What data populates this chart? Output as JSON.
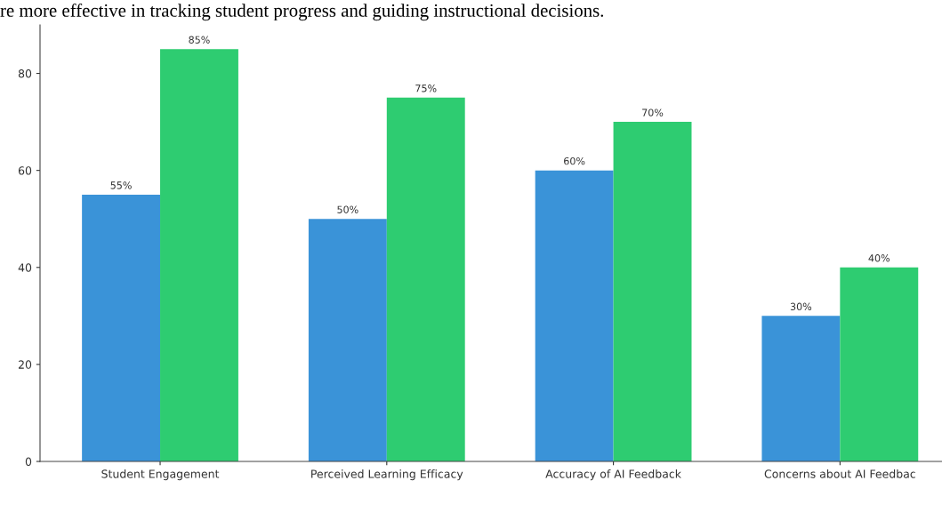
{
  "chart_data": {
    "type": "bar",
    "annotations": [
      "re more effective in tracking student progress and guiding instructional decisions."
    ],
    "categories": [
      "Student Engagement",
      "Perceived Learning Efficacy",
      "Accuracy of AI Feedback",
      "Concerns about AI Feedbac"
    ],
    "series": [
      {
        "color": "#3a93d8",
        "values": [
          55,
          50,
          60,
          30
        ],
        "value_labels": [
          "55%",
          "50%",
          "60%",
          "30%"
        ]
      },
      {
        "color": "#2ecc71",
        "values": [
          85,
          75,
          70,
          40
        ],
        "value_labels": [
          "85%",
          "75%",
          "70%",
          "40%"
        ]
      }
    ],
    "ylim": [
      0,
      90
    ],
    "yticks": [
      0,
      20,
      40,
      60,
      80
    ],
    "grid": false,
    "legend": false
  }
}
